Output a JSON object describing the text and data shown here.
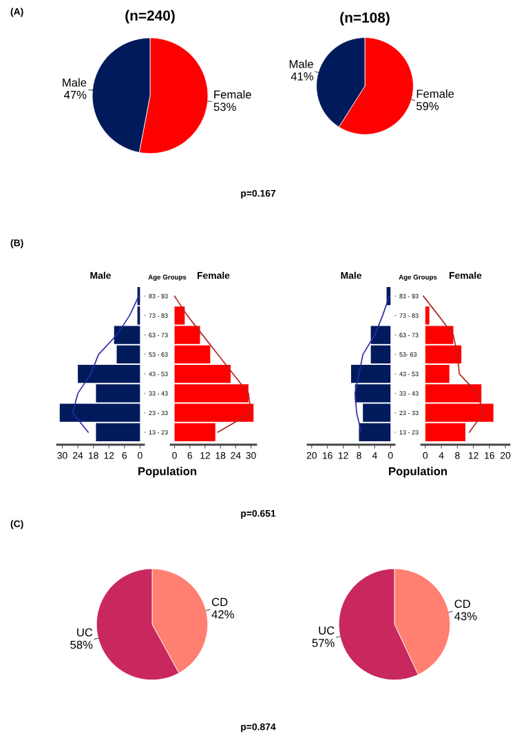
{
  "chart_data": [
    {
      "type": "pie",
      "title": "(n=240)",
      "categories": [
        "Female",
        "Male"
      ],
      "values": [
        53,
        47
      ],
      "colors": [
        "#ff0000",
        "#001a5c"
      ],
      "value_labels": [
        "53%",
        "47%"
      ],
      "annotations": [
        "(A)"
      ]
    },
    {
      "type": "pie",
      "title": "(n=108)",
      "categories": [
        "Female",
        "Male"
      ],
      "values": [
        59,
        41
      ],
      "colors": [
        "#ff0000",
        "#001a5c"
      ],
      "value_labels": [
        "59%",
        "41%"
      ],
      "annotations": [
        "p=0.167"
      ]
    },
    {
      "type": "bar",
      "orientation": "horizontal",
      "title": "Male",
      "ylabel": "Age Groups",
      "xlabel": "Population",
      "categories": [
        "83 - 93",
        "73 - 83",
        "63 - 73",
        "53 - 63",
        "43 - 53",
        "33 - 43",
        "23 - 33",
        "13 - 23"
      ],
      "xlim": [
        32,
        -1.5
      ],
      "xticks": [
        30,
        24,
        18,
        12,
        6,
        0
      ],
      "grid": false,
      "legend": false,
      "annotations": [
        "(B)"
      ],
      "series": [
        {
          "type": "bar",
          "color": "#001a5c",
          "values": [
            1,
            1,
            10,
            9,
            24,
            17,
            31,
            17
          ]
        },
        {
          "type": "line",
          "color": "#2a2aa8",
          "values": [
            0.5,
            4,
            9,
            16,
            19,
            24,
            26,
            20
          ]
        }
      ]
    },
    {
      "type": "bar",
      "orientation": "horizontal",
      "title": "Female",
      "categories": [
        null,
        null,
        null,
        null,
        null,
        null,
        null,
        null
      ],
      "xlim": [
        -1.5,
        32
      ],
      "xticks": [
        0,
        6,
        12,
        18,
        24,
        30
      ],
      "grid": false,
      "legend": false,
      "tick_labels": "x",
      "series": [
        {
          "type": "bar",
          "color": "#ff0000",
          "values": [
            0,
            4,
            10,
            14,
            22,
            29,
            31,
            16
          ]
        },
        {
          "type": "line",
          "color": "#b22222",
          "values": [
            0,
            5,
            11,
            17,
            23,
            29,
            30,
            17
          ]
        }
      ]
    },
    {
      "type": "bar",
      "orientation": "horizontal",
      "title": "Male",
      "ylabel": "Age Groups",
      "xlabel": "Population",
      "categories": [
        "83 - 93",
        "73 - 83",
        "63 - 73",
        "53- 63",
        "43 - 53",
        "33 - 43",
        "23 - 33",
        "13 - 23"
      ],
      "xlim": [
        21,
        -1
      ],
      "xticks": [
        20,
        16,
        12,
        8,
        4,
        0
      ],
      "grid": false,
      "legend": false,
      "annotations": [
        "p=0.651"
      ],
      "series": [
        {
          "type": "bar",
          "color": "#001a5c",
          "values": [
            1,
            0,
            5,
            5,
            10,
            9,
            7,
            8
          ]
        },
        {
          "type": "line",
          "color": "#2a2aa8",
          "values": [
            0.3,
            2,
            4,
            7,
            8,
            9,
            8.6,
            7.4
          ]
        }
      ]
    },
    {
      "type": "bar",
      "orientation": "horizontal",
      "title": "Female",
      "categories": [
        null,
        null,
        null,
        null,
        null,
        null,
        null,
        null
      ],
      "xlim": [
        -1,
        21
      ],
      "xticks": [
        0,
        4,
        8,
        12,
        16,
        20
      ],
      "grid": false,
      "legend": false,
      "tick_labels": "x",
      "series": [
        {
          "type": "bar",
          "color": "#ff0000",
          "values": [
            0,
            1,
            7,
            9,
            6,
            14,
            17,
            10
          ]
        },
        {
          "type": "line",
          "color": "#b22222",
          "values": [
            -0.5,
            3.3,
            7,
            8,
            8.5,
            13,
            14.5,
            11
          ]
        }
      ]
    },
    {
      "type": "pie",
      "categories": [
        "CD",
        "UC"
      ],
      "values": [
        42,
        58
      ],
      "colors": [
        "#ff8070",
        "#c8285e"
      ],
      "value_labels": [
        "42%",
        "58%"
      ],
      "annotations": [
        "(C)"
      ]
    },
    {
      "type": "pie",
      "categories": [
        "CD",
        "UC"
      ],
      "values": [
        43,
        57
      ],
      "colors": [
        "#ff8070",
        "#c8285e"
      ],
      "value_labels": [
        "43%",
        "57%"
      ],
      "annotations": [
        "p=0.874"
      ]
    }
  ]
}
